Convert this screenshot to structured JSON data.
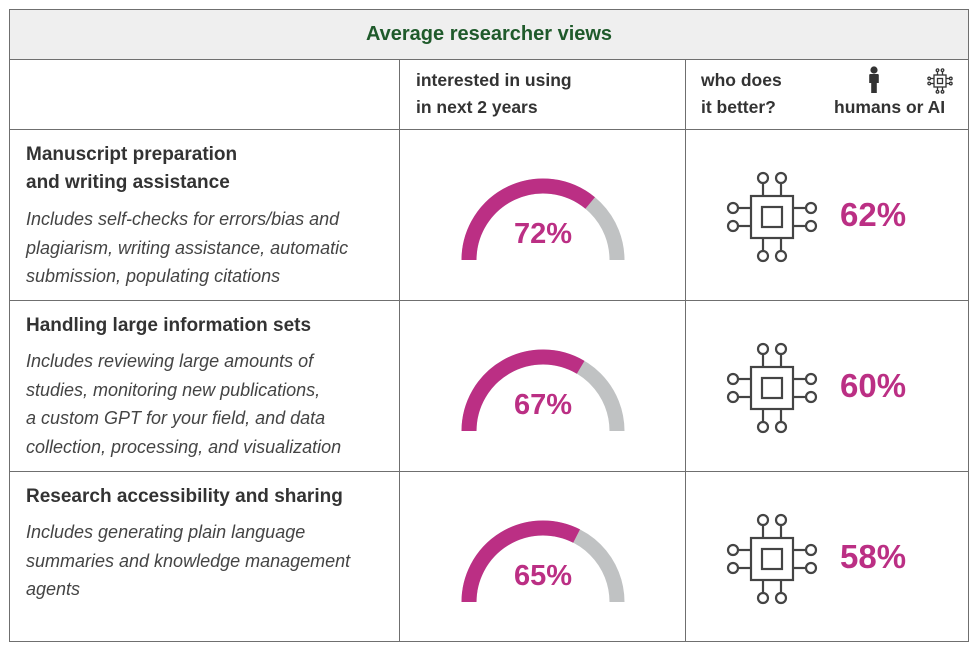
{
  "chart_data": {
    "type": "table",
    "title": "Average researcher views",
    "columns": {
      "interest": [
        "interested in using",
        "in next 2 years"
      ],
      "better": [
        "who does",
        "it better?"
      ],
      "better_legend": "humans or AI"
    },
    "rows": [
      {
        "title": [
          "Manuscript preparation",
          "and writing assistance"
        ],
        "description": [
          "Includes self-checks for errors/bias and",
          "plagiarism, writing assistance, automatic",
          "submission, populating citations"
        ],
        "interest_value": 72,
        "interest_label": "72%",
        "ai_better_value": 62,
        "ai_better_label": "62%"
      },
      {
        "title": [
          "Handling large information sets"
        ],
        "description": [
          "Includes reviewing large amounts of",
          "studies, monitoring new publications,",
          "a custom GPT for your field, and data",
          "collection, processing, and visualization"
        ],
        "interest_value": 67,
        "interest_label": "67%",
        "ai_better_value": 60,
        "ai_better_label": "60%"
      },
      {
        "title": [
          "Research accessibility and sharing"
        ],
        "description": [
          "Includes generating plain language",
          "summaries and knowledge management",
          "agents"
        ],
        "interest_value": 65,
        "interest_label": "65%",
        "ai_better_value": 58,
        "ai_better_label": "58%"
      }
    ]
  },
  "colors": {
    "title": "#1f5a2b",
    "accent": "#bb2f84",
    "gauge_track": "#c0c2c3",
    "border": "#6f6f6f",
    "header_bg": "#efefef"
  },
  "icons": {
    "human": "human-icon",
    "ai": "ai-chip-icon"
  }
}
